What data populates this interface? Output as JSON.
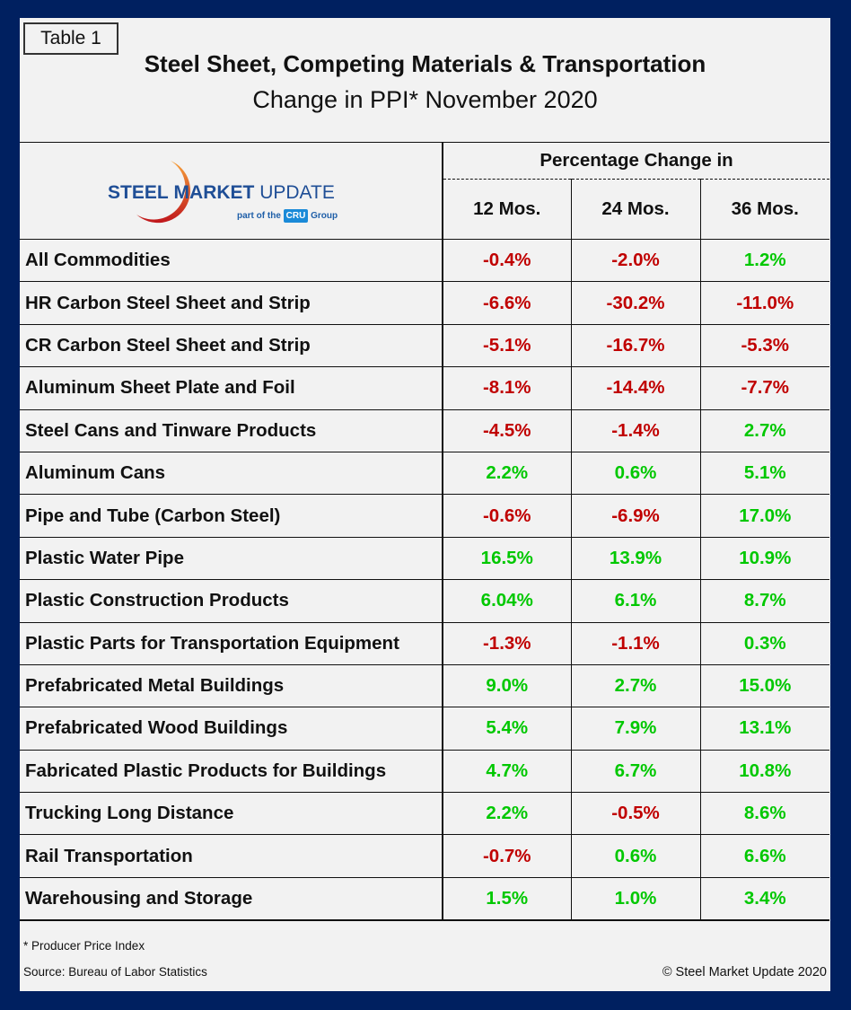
{
  "table_tag": "Table 1",
  "title": "Steel Sheet, Competing Materials & Transportation",
  "subtitle": "Change in PPI* November 2020",
  "logo": {
    "text_bold": "STEEL",
    "text_mid": "MARKET",
    "text_light": "UPDATE",
    "tagline_pre": "part of the",
    "badge": "CRU",
    "tagline_post": "Group"
  },
  "header": {
    "group": "Percentage Change in",
    "columns": [
      "12 Mos.",
      "24 Mos.",
      "36 Mos."
    ]
  },
  "colors": {
    "negative": "#c00000",
    "positive": "#00c800",
    "frame": "#002060"
  },
  "rows": [
    {
      "label": "All Commodities",
      "values": [
        "-0.4%",
        "-2.0%",
        "1.2%"
      ]
    },
    {
      "label": "HR Carbon Steel Sheet and Strip",
      "values": [
        "-6.6%",
        "-30.2%",
        "-11.0%"
      ]
    },
    {
      "label": "CR Carbon Steel Sheet and Strip",
      "values": [
        "-5.1%",
        "-16.7%",
        "-5.3%"
      ]
    },
    {
      "label": "Aluminum Sheet Plate and Foil",
      "values": [
        "-8.1%",
        "-14.4%",
        "-7.7%"
      ]
    },
    {
      "label": "Steel Cans and Tinware Products",
      "values": [
        "-4.5%",
        "-1.4%",
        "2.7%"
      ]
    },
    {
      "label": "Aluminum Cans",
      "values": [
        "2.2%",
        "0.6%",
        "5.1%"
      ]
    },
    {
      "label": "Pipe and Tube (Carbon Steel)",
      "values": [
        "-0.6%",
        "-6.9%",
        "17.0%"
      ]
    },
    {
      "label": "Plastic Water Pipe",
      "values": [
        "16.5%",
        "13.9%",
        "10.9%"
      ]
    },
    {
      "label": "Plastic Construction Products",
      "values": [
        "6.04%",
        "6.1%",
        "8.7%"
      ]
    },
    {
      "label": "Plastic Parts for Transportation Equipment",
      "values": [
        "-1.3%",
        "-1.1%",
        "0.3%"
      ]
    },
    {
      "label": "Prefabricated Metal Buildings",
      "values": [
        "9.0%",
        "2.7%",
        "15.0%"
      ]
    },
    {
      "label": "Prefabricated Wood Buildings",
      "values": [
        "5.4%",
        "7.9%",
        "13.1%"
      ]
    },
    {
      "label": "Fabricated Plastic Products for Buildings",
      "values": [
        "4.7%",
        "6.7%",
        "10.8%"
      ]
    },
    {
      "label": "Trucking Long Distance",
      "values": [
        "2.2%",
        "-0.5%",
        "8.6%"
      ]
    },
    {
      "label": "Rail Transportation",
      "values": [
        "-0.7%",
        "0.6%",
        "6.6%"
      ]
    },
    {
      "label": "Warehousing and Storage",
      "values": [
        "1.5%",
        "1.0%",
        "3.4%"
      ]
    }
  ],
  "footnote": "* Producer Price Index",
  "source": "Source: Bureau of Labor Statistics",
  "copyright": "© Steel Market Update 2020"
}
